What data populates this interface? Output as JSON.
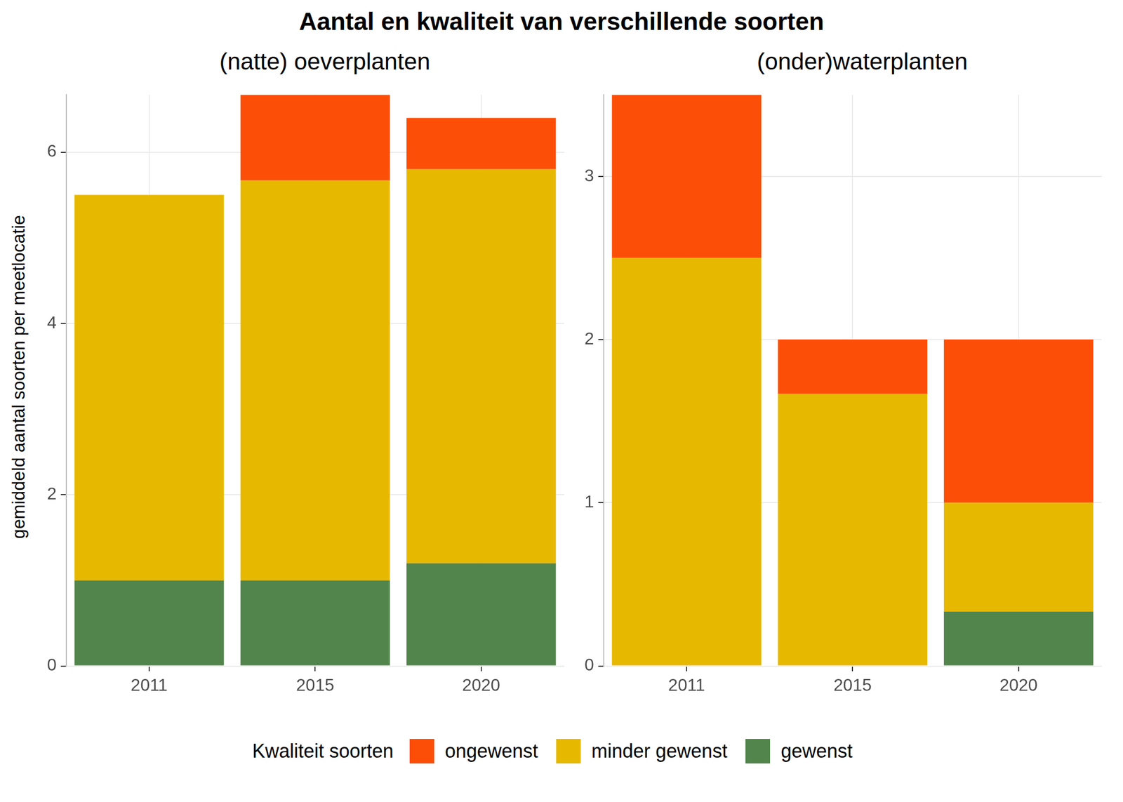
{
  "title": "Aantal en kwaliteit van verschillende soorten",
  "ylabel": "gemiddeld aantal soorten per meetlocatie",
  "legend_title": "Kwaliteit soorten",
  "chart_data": [
    {
      "type": "bar",
      "subtitle": "(natte) oeverplanten",
      "stacked": true,
      "grid": true,
      "legend": "bottom",
      "categories": [
        "2011",
        "2015",
        "2020"
      ],
      "series": [
        {
          "name": "ongewenst",
          "color": "#FC4E07",
          "values": [
            0,
            1.0,
            0.6
          ]
        },
        {
          "name": "minder gewenst",
          "color": "#E7B800",
          "values": [
            4.5,
            4.67,
            4.6
          ]
        },
        {
          "name": "gewenst",
          "color": "#52854C",
          "values": [
            1.0,
            1.0,
            1.2
          ]
        }
      ],
      "ylim": [
        0,
        6.67
      ],
      "yticks": [
        0,
        2,
        4,
        6
      ]
    },
    {
      "type": "bar",
      "subtitle": "(onder)waterplanten",
      "stacked": true,
      "grid": true,
      "legend": "bottom",
      "categories": [
        "2011",
        "2015",
        "2020"
      ],
      "series": [
        {
          "name": "ongewenst",
          "color": "#FC4E07",
          "values": [
            1.0,
            0.333,
            1.0
          ]
        },
        {
          "name": "minder gewenst",
          "color": "#E7B800",
          "values": [
            2.5,
            1.667,
            0.667
          ]
        },
        {
          "name": "gewenst",
          "color": "#52854C",
          "values": [
            0,
            0,
            0.333
          ]
        }
      ],
      "ylim": [
        0,
        3.5
      ],
      "yticks": [
        0,
        1,
        2,
        3
      ]
    }
  ]
}
